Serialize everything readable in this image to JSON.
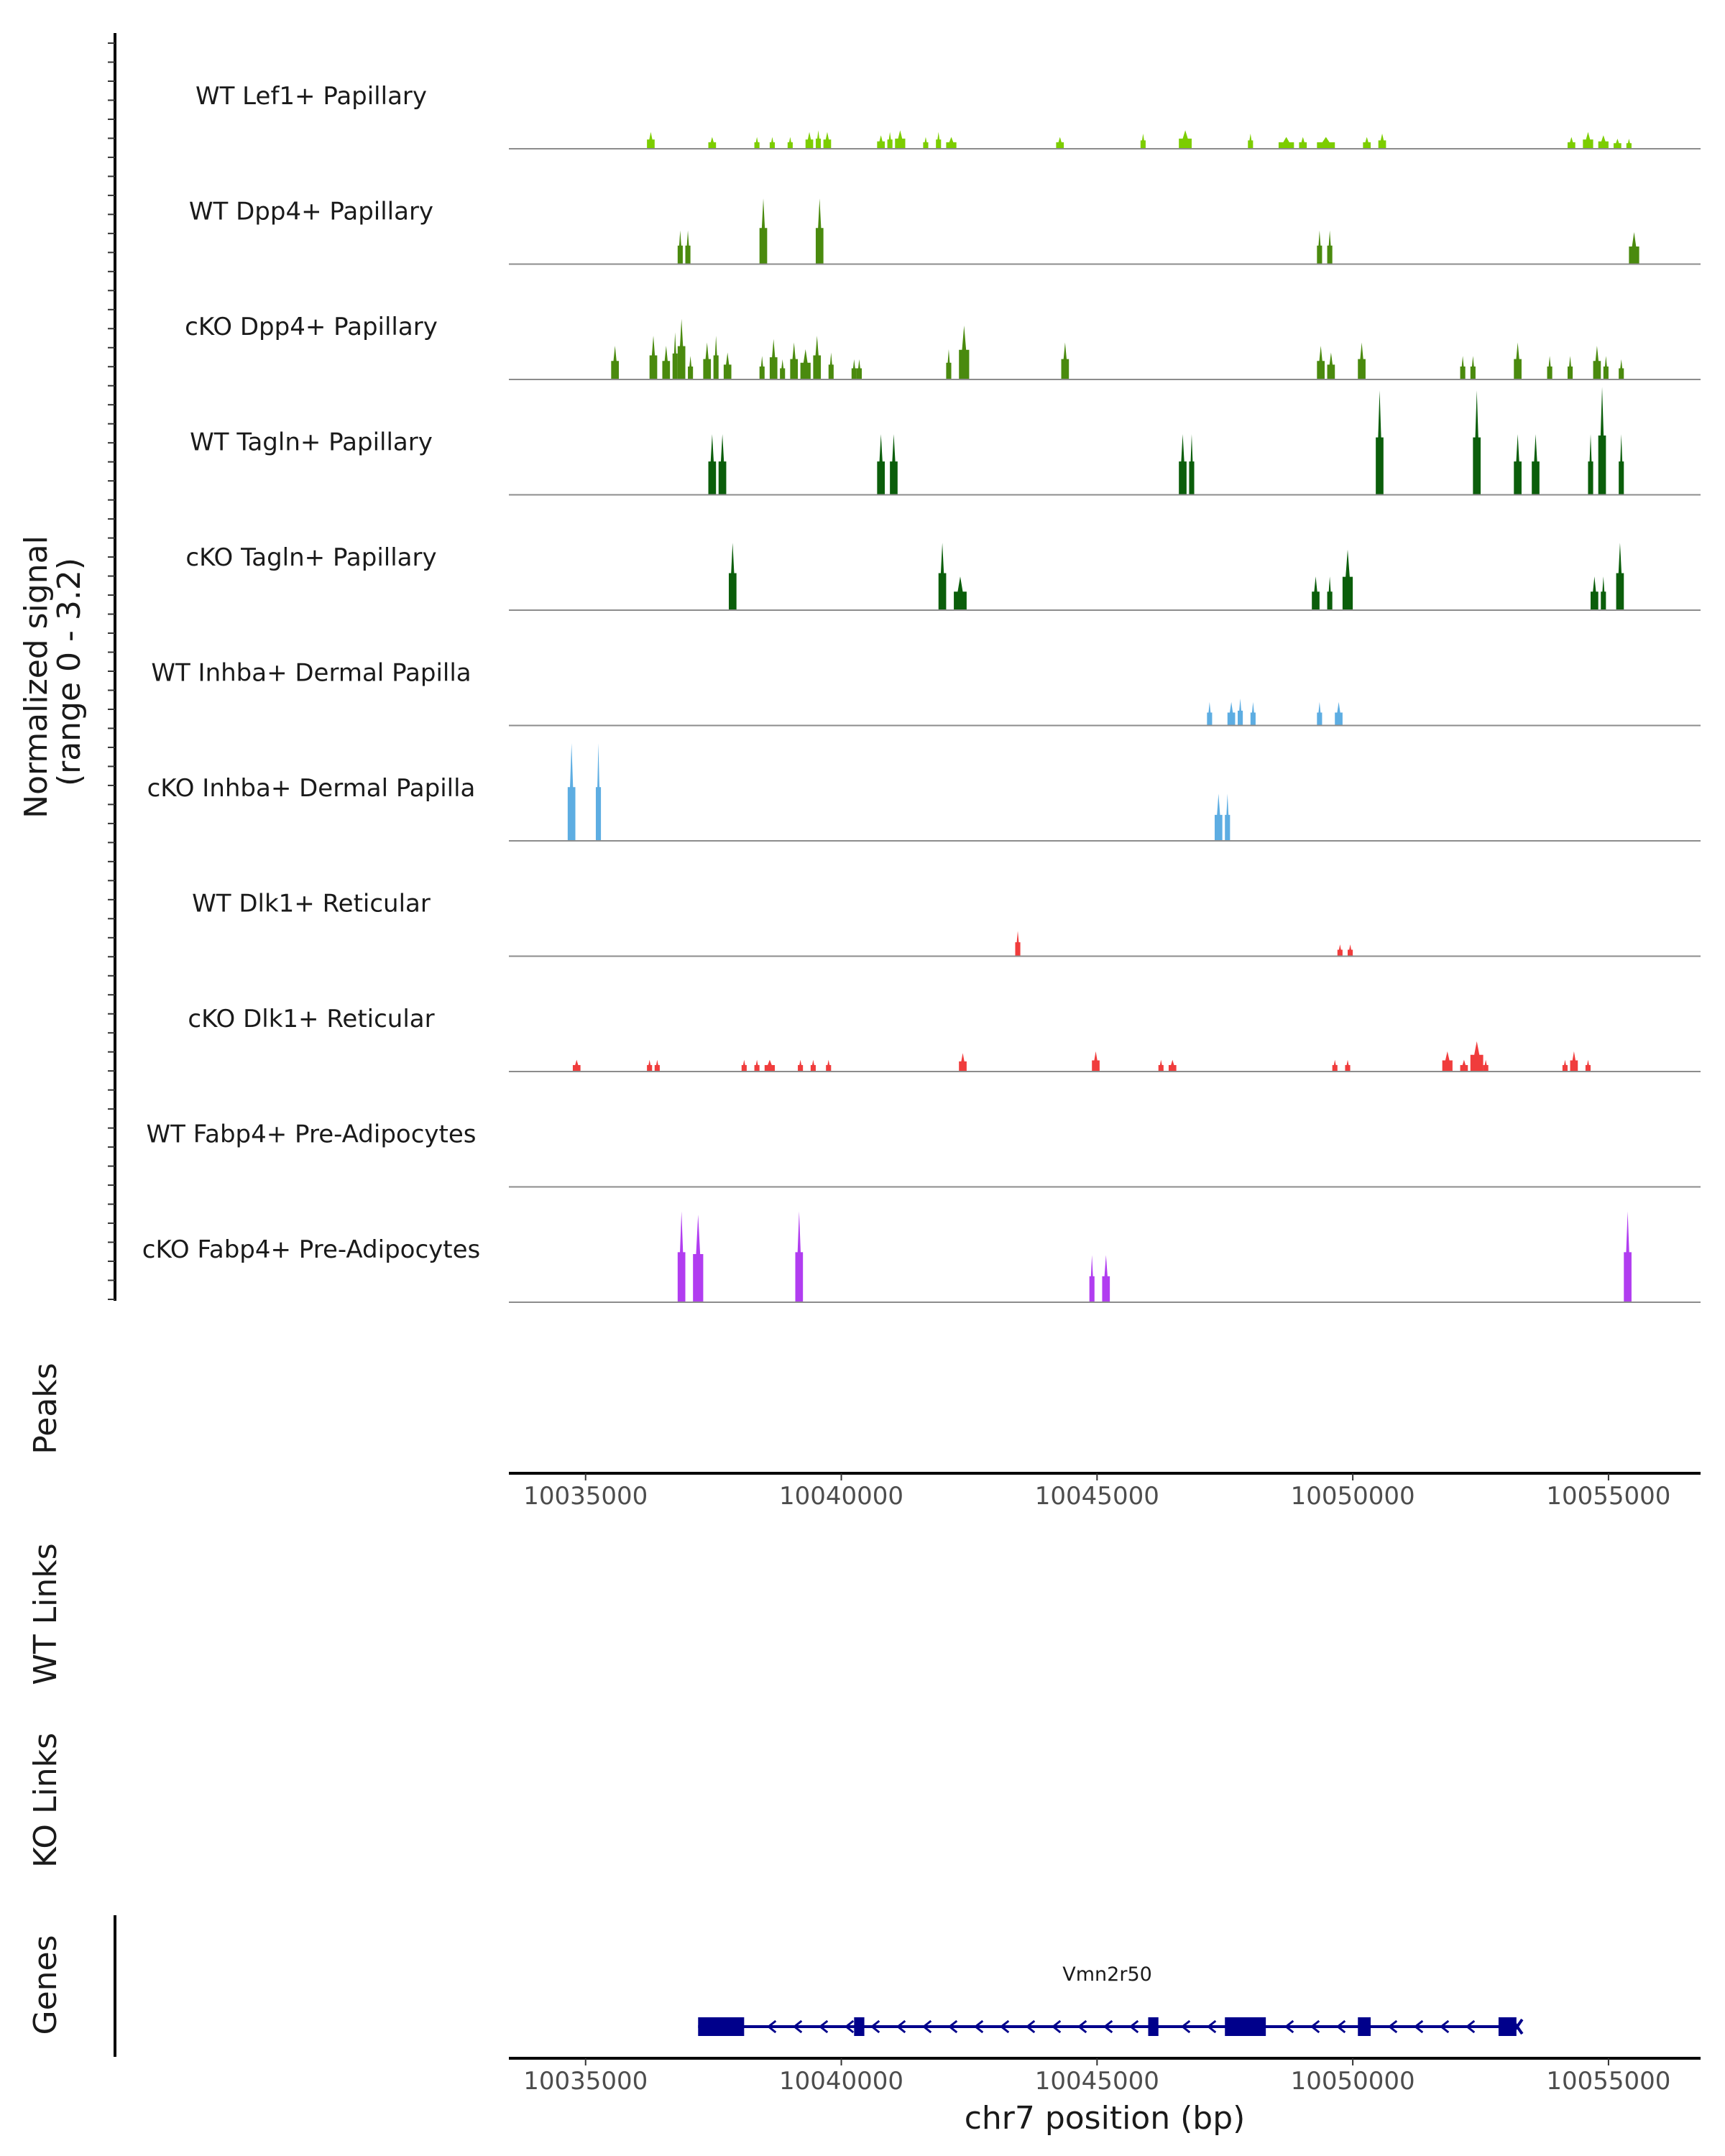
{
  "chart_data": {
    "type": "coverage-track",
    "y_axis_title_line1": "Normalized signal",
    "y_axis_title_line2": "(range 0 - 3.2)",
    "ylim": [
      0,
      3.2
    ],
    "xlim": [
      10033500,
      10056800
    ],
    "x_ticks": [
      10035000,
      10040000,
      10045000,
      10050000,
      10055000
    ],
    "x_tick_labels": [
      "10035000",
      "10040000",
      "10045000",
      "10050000",
      "10055000"
    ],
    "xlabel": "chr7 position (bp)",
    "panel_titles": {
      "peaks": "Peaks",
      "wt_links": "WT Links",
      "ko_links": "KO Links",
      "genes": "Genes"
    },
    "colors": {
      "lef1": "#7CCD00",
      "dpp4": "#4A8A0E",
      "tagln": "#0B5E0B",
      "inhba": "#5DADE2",
      "dlk1": "#F03C3C",
      "fabp4": "#B13DF0",
      "gene": "#00008B",
      "baseline": "#8c8c8c"
    },
    "tracks": [
      {
        "name": "WT Lef1+ Papillary",
        "color_key": "lef1",
        "peaks": [
          [
            10036200,
            10036350,
            0.5
          ],
          [
            10037400,
            10037550,
            0.35
          ],
          [
            10038300,
            10038400,
            0.35
          ],
          [
            10038600,
            10038700,
            0.35
          ],
          [
            10038950,
            10039050,
            0.35
          ],
          [
            10039300,
            10039450,
            0.5
          ],
          [
            10039500,
            10039600,
            0.55
          ],
          [
            10039650,
            10039800,
            0.5
          ],
          [
            10040700,
            10040850,
            0.4
          ],
          [
            10040900,
            10041000,
            0.5
          ],
          [
            10041050,
            10041250,
            0.55
          ],
          [
            10041600,
            10041700,
            0.35
          ],
          [
            10041850,
            10041950,
            0.5
          ],
          [
            10042050,
            10042250,
            0.35
          ],
          [
            10044200,
            10044350,
            0.35
          ],
          [
            10045850,
            10045950,
            0.45
          ],
          [
            10046600,
            10046850,
            0.55
          ],
          [
            10047950,
            10048050,
            0.45
          ],
          [
            10048550,
            10048850,
            0.35
          ],
          [
            10048950,
            10049100,
            0.35
          ],
          [
            10049300,
            10049650,
            0.35
          ],
          [
            10050200,
            10050350,
            0.35
          ],
          [
            10050500,
            10050650,
            0.45
          ],
          [
            10054200,
            10054350,
            0.35
          ],
          [
            10054500,
            10054700,
            0.5
          ],
          [
            10054800,
            10055000,
            0.4
          ],
          [
            10055100,
            10055250,
            0.3
          ],
          [
            10055350,
            10055450,
            0.3
          ]
        ]
      },
      {
        "name": "WT Dpp4+ Papillary",
        "color_key": "dpp4",
        "peaks": [
          [
            10036800,
            10036900,
            1.0
          ],
          [
            10036950,
            10037050,
            1.0
          ],
          [
            10038400,
            10038550,
            1.95
          ],
          [
            10039500,
            10039650,
            1.95
          ],
          [
            10049300,
            10049400,
            1.0
          ],
          [
            10049500,
            10049600,
            1.0
          ],
          [
            10055400,
            10055600,
            0.95
          ]
        ]
      },
      {
        "name": "cKO Dpp4+ Papillary",
        "color_key": "dpp4",
        "peaks": [
          [
            10035500,
            10035650,
            1.0
          ],
          [
            10036250,
            10036400,
            1.3
          ],
          [
            10036500,
            10036650,
            1.0
          ],
          [
            10036700,
            10036800,
            1.4
          ],
          [
            10036800,
            10036950,
            1.8
          ],
          [
            10037000,
            10037100,
            0.7
          ],
          [
            10037300,
            10037450,
            1.1
          ],
          [
            10037500,
            10037600,
            1.3
          ],
          [
            10037700,
            10037850,
            0.8
          ],
          [
            10038400,
            10038500,
            0.7
          ],
          [
            10038600,
            10038750,
            1.2
          ],
          [
            10038800,
            10038900,
            0.6
          ],
          [
            10039000,
            10039150,
            1.1
          ],
          [
            10039200,
            10039400,
            0.9
          ],
          [
            10039450,
            10039600,
            1.3
          ],
          [
            10039750,
            10039850,
            0.8
          ],
          [
            10040200,
            10040300,
            0.6
          ],
          [
            10040300,
            10040400,
            0.6
          ],
          [
            10042050,
            10042150,
            0.9
          ],
          [
            10042300,
            10042500,
            1.6
          ],
          [
            10044300,
            10044450,
            1.1
          ],
          [
            10049300,
            10049450,
            1.0
          ],
          [
            10049500,
            10049650,
            0.8
          ],
          [
            10050100,
            10050250,
            1.1
          ],
          [
            10052100,
            10052200,
            0.7
          ],
          [
            10052300,
            10052400,
            0.7
          ],
          [
            10053150,
            10053300,
            1.1
          ],
          [
            10053800,
            10053900,
            0.7
          ],
          [
            10054200,
            10054300,
            0.7
          ],
          [
            10054700,
            10054850,
            1.0
          ],
          [
            10054900,
            10055000,
            0.7
          ],
          [
            10055200,
            10055300,
            0.6
          ]
        ]
      },
      {
        "name": "WT Tagln+ Papillary",
        "color_key": "tagln",
        "peaks": [
          [
            10037400,
            10037550,
            1.8
          ],
          [
            10037600,
            10037750,
            1.8
          ],
          [
            10040700,
            10040850,
            1.8
          ],
          [
            10040950,
            10041100,
            1.8
          ],
          [
            10046600,
            10046750,
            1.8
          ],
          [
            10046800,
            10046900,
            1.8
          ],
          [
            10050450,
            10050600,
            3.1
          ],
          [
            10052350,
            10052500,
            3.1
          ],
          [
            10053150,
            10053300,
            1.8
          ],
          [
            10053500,
            10053650,
            1.8
          ],
          [
            10054600,
            10054700,
            1.8
          ],
          [
            10054800,
            10054950,
            3.2
          ],
          [
            10055200,
            10055300,
            1.8
          ]
        ]
      },
      {
        "name": "cKO Tagln+ Papillary",
        "color_key": "tagln",
        "peaks": [
          [
            10037800,
            10037950,
            2.0
          ],
          [
            10041900,
            10042050,
            2.0
          ],
          [
            10042200,
            10042450,
            1.0
          ],
          [
            10049200,
            10049350,
            1.0
          ],
          [
            10049500,
            10049600,
            1.0
          ],
          [
            10049800,
            10050000,
            1.8
          ],
          [
            10054650,
            10054800,
            1.0
          ],
          [
            10054850,
            10054950,
            1.0
          ],
          [
            10055150,
            10055300,
            2.0
          ]
        ]
      },
      {
        "name": "WT Inhba+ Dermal Papilla",
        "color_key": "inhba",
        "peaks": [
          [
            10047150,
            10047250,
            0.7
          ],
          [
            10047550,
            10047700,
            0.7
          ],
          [
            10047750,
            10047850,
            0.8
          ],
          [
            10048000,
            10048100,
            0.7
          ],
          [
            10049300,
            10049400,
            0.7
          ],
          [
            10049650,
            10049800,
            0.7
          ]
        ]
      },
      {
        "name": "cKO Inhba+ Dermal Papilla",
        "color_key": "inhba",
        "peaks": [
          [
            10034650,
            10034800,
            2.9
          ],
          [
            10035200,
            10035300,
            2.9
          ],
          [
            10047300,
            10047450,
            1.4
          ],
          [
            10047500,
            10047600,
            1.4
          ]
        ]
      },
      {
        "name": "WT Dlk1+ Reticular",
        "color_key": "dlk1",
        "peaks": [
          [
            10043400,
            10043500,
            0.75
          ],
          [
            10049700,
            10049800,
            0.35
          ],
          [
            10049900,
            10050000,
            0.35
          ]
        ]
      },
      {
        "name": "cKO Dlk1+ Reticular",
        "color_key": "dlk1",
        "peaks": [
          [
            10034750,
            10034900,
            0.35
          ],
          [
            10036200,
            10036300,
            0.35
          ],
          [
            10036350,
            10036450,
            0.35
          ],
          [
            10038050,
            10038150,
            0.35
          ],
          [
            10038300,
            10038400,
            0.35
          ],
          [
            10038500,
            10038700,
            0.35
          ],
          [
            10039150,
            10039250,
            0.35
          ],
          [
            10039400,
            10039500,
            0.35
          ],
          [
            10039700,
            10039800,
            0.35
          ],
          [
            10042300,
            10042450,
            0.55
          ],
          [
            10044900,
            10045050,
            0.6
          ],
          [
            10046200,
            10046300,
            0.35
          ],
          [
            10046400,
            10046550,
            0.35
          ],
          [
            10049600,
            10049700,
            0.35
          ],
          [
            10049850,
            10049950,
            0.35
          ],
          [
            10051750,
            10051950,
            0.6
          ],
          [
            10052100,
            10052250,
            0.35
          ],
          [
            10052300,
            10052550,
            0.9
          ],
          [
            10052550,
            10052650,
            0.35
          ],
          [
            10054100,
            10054200,
            0.35
          ],
          [
            10054250,
            10054400,
            0.6
          ],
          [
            10054550,
            10054650,
            0.35
          ]
        ]
      },
      {
        "name": "WT Fabp4+ Pre-Adipocytes",
        "color_key": "fabp4",
        "peaks": []
      },
      {
        "name": "cKO Fabp4+ Pre-Adipocytes",
        "color_key": "fabp4",
        "peaks": [
          [
            10036800,
            10036950,
            2.7
          ],
          [
            10037100,
            10037300,
            2.6
          ],
          [
            10039100,
            10039250,
            2.7
          ],
          [
            10044850,
            10044950,
            1.4
          ],
          [
            10045100,
            10045250,
            1.4
          ],
          [
            10055300,
            10055450,
            2.7
          ]
        ]
      }
    ],
    "gene": {
      "name": "Vmn2r50",
      "strand": "-",
      "start": 10037200,
      "end": 10053200,
      "exons": [
        [
          10037200,
          10038100
        ],
        [
          10040250,
          10040450
        ],
        [
          10046000,
          10046200
        ],
        [
          10047500,
          10048300
        ],
        [
          10050100,
          10050350
        ],
        [
          10052850,
          10053200
        ]
      ]
    }
  }
}
